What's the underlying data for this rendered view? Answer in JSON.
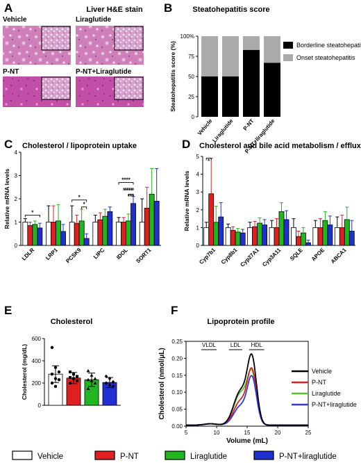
{
  "panel_a": {
    "letter": "A",
    "title": "Liver H&E stain",
    "images": [
      {
        "label": "Vehicle"
      },
      {
        "label": "Liraglutide"
      },
      {
        "label": "P-NT"
      },
      {
        "label": "P-NT+Liraglutide"
      }
    ]
  },
  "chart_data": [
    {
      "id": "B",
      "type": "bar",
      "stacked": true,
      "title": "Steatohepatitis score",
      "ylabel": "Steatohepatitis score (%)",
      "ylim": [
        0,
        100
      ],
      "yticks": [
        "0",
        "25",
        "50",
        "75",
        "100%"
      ],
      "categories": [
        "Vehicle",
        "Liraglutide",
        "P-NT",
        "P-NT+liraglutide"
      ],
      "series": [
        {
          "name": "Borderline steatohepatitis",
          "color": "#000000",
          "values": [
            50,
            50,
            83,
            67
          ]
        },
        {
          "name": "Onset steatohepatitis",
          "color": "#aaaaaa",
          "values": [
            50,
            50,
            17,
            33
          ]
        }
      ],
      "legend": "right"
    },
    {
      "id": "C",
      "type": "bar",
      "title": "Cholesterol / lipoprotein uptake",
      "ylabel": "Relative mRNA levels",
      "ylim": [
        0,
        4
      ],
      "yticks": [
        "0",
        "1",
        "2",
        "3",
        "4"
      ],
      "categories": [
        "LDLR",
        "LRP1",
        "PCSK9",
        "LIPC",
        "IDOL",
        "SORT1"
      ],
      "groups": [
        "Vehicle",
        "P-NT",
        "Liraglutide",
        "P-NT+liraglutide"
      ],
      "colors": [
        "#ffffff",
        "#e02020",
        "#22b522",
        "#1f2fd0"
      ],
      "values": [
        [
          1.0,
          0.85,
          0.9,
          0.75
        ],
        [
          1.0,
          1.0,
          1.05,
          0.6
        ],
        [
          1.0,
          0.95,
          1.05,
          0.3
        ],
        [
          1.0,
          1.1,
          1.25,
          1.45
        ],
        [
          1.0,
          1.0,
          1.05,
          1.8
        ],
        [
          1.0,
          1.6,
          2.2,
          1.9
        ]
      ],
      "errors": [
        [
          0.15,
          0.15,
          0.15,
          0.2
        ],
        [
          0.7,
          0.7,
          0.7,
          0.3
        ],
        [
          0.7,
          0.35,
          0.5,
          0.2
        ],
        [
          0.3,
          0.3,
          0.3,
          0.2
        ],
        [
          0.2,
          0.2,
          0.3,
          0.3
        ],
        [
          1.0,
          0.9,
          1.1,
          1.4
        ]
      ],
      "annotations": [
        {
          "text": "*"
        },
        {
          "text": "*"
        },
        {
          "text": "*"
        },
        {
          "text": "****"
        },
        {
          "text": "****"
        },
        {
          "text": "***"
        }
      ]
    },
    {
      "id": "D",
      "type": "bar",
      "title": "Cholesterol and bile acid metabolism / efflux",
      "ylabel": "Relative mRNA levels",
      "ylim": [
        0,
        5
      ],
      "yticks": [
        "0",
        "1",
        "2",
        "3",
        "4",
        "5"
      ],
      "categories": [
        "Cyp7b1",
        "Cyp8b1",
        "Cyp27A1",
        "Cyp3A11",
        "SQLE",
        "APOE",
        "ABCA1"
      ],
      "groups": [
        "Vehicle",
        "P-NT",
        "Liraglutide",
        "P-NT+liraglutide"
      ],
      "colors": [
        "#ffffff",
        "#e02020",
        "#22b522",
        "#1f2fd0"
      ],
      "values": [
        [
          1.0,
          2.9,
          1.3,
          1.6
        ],
        [
          1.0,
          0.85,
          0.75,
          0.7
        ],
        [
          1.0,
          1.05,
          1.25,
          1.15
        ],
        [
          1.0,
          1.0,
          1.9,
          1.45
        ],
        [
          1.0,
          0.5,
          0.7,
          0.15
        ],
        [
          1.0,
          1.0,
          1.4,
          1.15
        ],
        [
          1.0,
          1.0,
          1.45,
          0.8
        ]
      ],
      "errors": [
        [
          0.3,
          2.0,
          0.9,
          0.8
        ],
        [
          0.2,
          0.2,
          0.2,
          0.2
        ],
        [
          0.3,
          0.3,
          0.3,
          0.3
        ],
        [
          0.4,
          0.5,
          0.5,
          0.5
        ],
        [
          0.5,
          0.3,
          0.3,
          0.15
        ],
        [
          0.4,
          0.5,
          0.5,
          0.5
        ],
        [
          0.6,
          0.7,
          0.7,
          0.6
        ]
      ],
      "annotations": [
        {
          "text": "*"
        }
      ]
    },
    {
      "id": "E",
      "type": "bar",
      "title": "Cholesterol",
      "ylabel": "Cholesterol (mg/dL)",
      "ylim": [
        0,
        600
      ],
      "yticks": [
        "0",
        "200",
        "400",
        "600"
      ],
      "categories": [
        "Vehicle",
        "P-NT",
        "Liraglutide",
        "P-NT+liraglutide"
      ],
      "colors": [
        "#ffffff",
        "#e02020",
        "#22b522",
        "#1f2fd0"
      ],
      "values": [
        280,
        245,
        230,
        205
      ],
      "errors": [
        75,
        50,
        60,
        45
      ],
      "points": [
        [
          520,
          340,
          300,
          280,
          240,
          230,
          200,
          170
        ],
        [
          300,
          280,
          260,
          250,
          240,
          220,
          200
        ],
        [
          310,
          270,
          240,
          230,
          220,
          200,
          150
        ],
        [
          260,
          240,
          210,
          200,
          180,
          170
        ]
      ]
    },
    {
      "id": "F",
      "type": "line",
      "title": "Lipoprotein profile",
      "xlabel": "Volume (mL)",
      "ylabel": "Cholesterol (nmol/μL)",
      "xlim": [
        5,
        25
      ],
      "ylim": [
        0,
        0.25
      ],
      "xticks": [
        "5",
        "10",
        "15",
        "20",
        "25"
      ],
      "yticks": [
        "0.00",
        "0.05",
        "0.10",
        "0.15",
        "0.20",
        "0.25"
      ],
      "fractions": [
        {
          "label": "VLDL"
        },
        {
          "label": "LDL"
        },
        {
          "label": "HDL"
        }
      ],
      "series": [
        {
          "name": "Vehicle",
          "color": "#000000",
          "peak": 0.186,
          "shoulder": 0.098
        },
        {
          "name": "P-NT",
          "color": "#e02020",
          "peak": 0.152,
          "shoulder": 0.07
        },
        {
          "name": "Liraglutide",
          "color": "#4ec72c",
          "peak": 0.142,
          "shoulder": 0.092
        },
        {
          "name": "P-NT+liraglutide",
          "color": "#2a3be0",
          "peak": 0.133,
          "shoulder": 0.055
        }
      ]
    }
  ],
  "bottom_legend": [
    {
      "label": "Vehicle",
      "color": "#ffffff"
    },
    {
      "label": "P-NT",
      "color": "#e02020"
    },
    {
      "label": "Liraglutide",
      "color": "#22b522"
    },
    {
      "label": "P-NT+liraglutide",
      "color": "#1f2fd0"
    }
  ]
}
